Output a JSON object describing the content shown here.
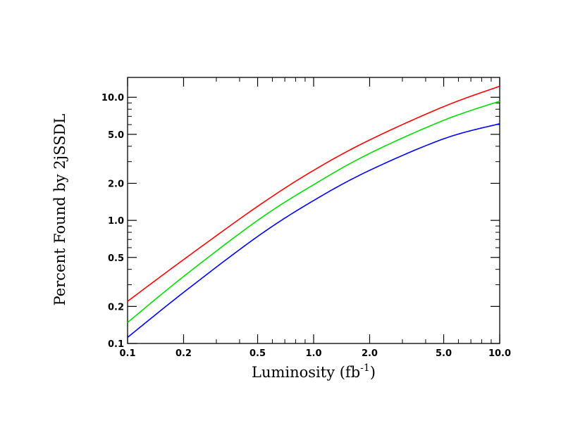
{
  "chart_data": {
    "type": "line",
    "title": "",
    "xlabel": "Luminosity (fb",
    "xlabel_sup": "-1",
    "xlabel_close": ")",
    "ylabel": "Percent Found by 2jSSDL",
    "xscale": "log",
    "yscale": "log",
    "xlim": [
      0.1,
      10.0
    ],
    "ylim": [
      0.1,
      14.5
    ],
    "grid": false,
    "legend": "none",
    "x_ticks": [
      {
        "value": 0.1,
        "label": "0.1"
      },
      {
        "value": 0.2,
        "label": "0.2"
      },
      {
        "value": 0.5,
        "label": "0.5"
      },
      {
        "value": 1.0,
        "label": "1.0"
      },
      {
        "value": 2.0,
        "label": "2.0"
      },
      {
        "value": 5.0,
        "label": "5.0"
      },
      {
        "value": 10.0,
        "label": "10.0"
      }
    ],
    "y_ticks": [
      {
        "value": 0.1,
        "label": "0.1"
      },
      {
        "value": 0.2,
        "label": "0.2"
      },
      {
        "value": 0.5,
        "label": "0.5"
      },
      {
        "value": 1.0,
        "label": "1.0"
      },
      {
        "value": 2.0,
        "label": "2.0"
      },
      {
        "value": 5.0,
        "label": "5.0"
      },
      {
        "value": 10.0,
        "label": "10.0"
      }
    ],
    "x": [
      0.1,
      0.2,
      0.5,
      1.0,
      2.0,
      5.0,
      10.0
    ],
    "series": [
      {
        "color": "#ff0000",
        "values": [
          0.22,
          0.48,
          1.3,
          2.55,
          4.5,
          8.4,
          12.3
        ]
      },
      {
        "color": "#00dd00",
        "values": [
          0.148,
          0.35,
          1.0,
          1.95,
          3.5,
          6.5,
          9.3
        ]
      },
      {
        "color": "#0000ff",
        "values": [
          0.112,
          0.26,
          0.74,
          1.45,
          2.55,
          4.6,
          6.1
        ]
      }
    ]
  }
}
